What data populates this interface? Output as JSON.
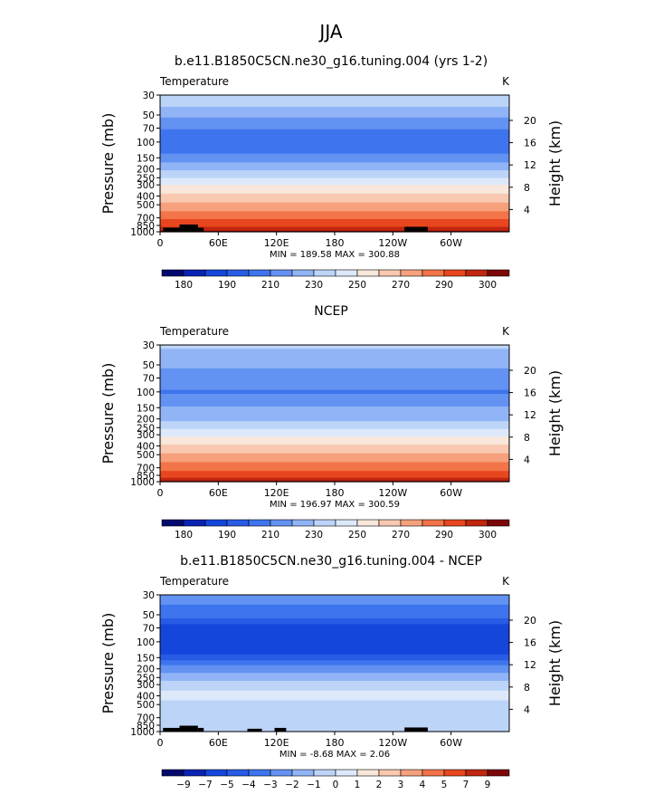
{
  "figure": {
    "title": "JJA"
  },
  "chart_data": [
    {
      "type": "heatmap",
      "title": "b.e11.B1850C5CN.ne30_g16.tuning.004 (yrs 1-2)",
      "subtitle": "Temperature",
      "units": "K",
      "ylabel": "Pressure (mb)",
      "ylabel_right": "Height (km)",
      "x_ticks": [
        "0",
        "60E",
        "120E",
        "180",
        "120W",
        "60W"
      ],
      "x_tick_values": [
        0,
        60,
        120,
        180,
        240,
        300
      ],
      "xlim": [
        0,
        360
      ],
      "y_ticks": [
        30,
        50,
        70,
        100,
        150,
        200,
        250,
        300,
        400,
        500,
        700,
        850,
        1000
      ],
      "ylim": [
        30,
        1000
      ],
      "y_scale": "log",
      "height_ticks": [
        20,
        16,
        12,
        8,
        4
      ],
      "min_max_text": "MIN = 189.58   MAX = 300.88",
      "profile": [
        {
          "p": 30,
          "v": 225
        },
        {
          "p": 45,
          "v": 218
        },
        {
          "p": 60,
          "v": 205
        },
        {
          "p": 80,
          "v": 197
        },
        {
          "p": 100,
          "v": 191
        },
        {
          "p": 130,
          "v": 198
        },
        {
          "p": 150,
          "v": 205
        },
        {
          "p": 175,
          "v": 212
        },
        {
          "p": 200,
          "v": 218
        },
        {
          "p": 250,
          "v": 230
        },
        {
          "p": 300,
          "v": 240
        },
        {
          "p": 400,
          "v": 253
        },
        {
          "p": 500,
          "v": 263
        },
        {
          "p": 700,
          "v": 278
        },
        {
          "p": 850,
          "v": 287
        },
        {
          "p": 1000,
          "v": 297
        }
      ],
      "colorbar": {
        "labels": [
          "180",
          "190",
          "210",
          "230",
          "250",
          "270",
          "290",
          "300"
        ],
        "label_slots": [
          1,
          3,
          5,
          7,
          9,
          11,
          13,
          15
        ],
        "levels": [
          175,
          180,
          185,
          190,
          200,
          210,
          220,
          230,
          240,
          250,
          260,
          270,
          280,
          290,
          295,
          300
        ]
      },
      "topography": [
        [
          3,
          20,
          900
        ],
        [
          20,
          39,
          830
        ],
        [
          39,
          45,
          900
        ],
        [
          252,
          276,
          880
        ]
      ]
    },
    {
      "type": "heatmap",
      "title": "NCEP",
      "subtitle": "Temperature",
      "units": "K",
      "ylabel": "Pressure (mb)",
      "ylabel_right": "Height (km)",
      "x_ticks": [
        "0",
        "60E",
        "120E",
        "180",
        "120W",
        "60W"
      ],
      "x_tick_values": [
        0,
        60,
        120,
        180,
        240,
        300
      ],
      "xlim": [
        0,
        360
      ],
      "y_ticks": [
        30,
        50,
        70,
        100,
        150,
        200,
        250,
        300,
        400,
        500,
        700,
        850,
        1000
      ],
      "ylim": [
        30,
        1000
      ],
      "y_scale": "log",
      "height_ticks": [
        20,
        16,
        12,
        8,
        4
      ],
      "min_max_text": "MIN = 196.97   MAX = 300.59",
      "profile": [
        {
          "p": 30,
          "v": 222
        },
        {
          "p": 50,
          "v": 212
        },
        {
          "p": 70,
          "v": 205
        },
        {
          "p": 100,
          "v": 199
        },
        {
          "p": 130,
          "v": 205
        },
        {
          "p": 150,
          "v": 211
        },
        {
          "p": 200,
          "v": 218
        },
        {
          "p": 250,
          "v": 228
        },
        {
          "p": 300,
          "v": 238
        },
        {
          "p": 400,
          "v": 252
        },
        {
          "p": 500,
          "v": 262
        },
        {
          "p": 700,
          "v": 276
        },
        {
          "p": 850,
          "v": 286
        },
        {
          "p": 1000,
          "v": 296
        }
      ],
      "colorbar": {
        "labels": [
          "180",
          "190",
          "210",
          "230",
          "250",
          "270",
          "290",
          "300"
        ],
        "label_slots": [
          1,
          3,
          5,
          7,
          9,
          11,
          13,
          15
        ],
        "levels": [
          175,
          180,
          185,
          190,
          200,
          210,
          220,
          230,
          240,
          250,
          260,
          270,
          280,
          290,
          295,
          300
        ]
      },
      "topography": []
    },
    {
      "type": "heatmap",
      "title": "b.e11.B1850C5CN.ne30_g16.tuning.004 - NCEP",
      "subtitle": "Temperature",
      "units": "K",
      "ylabel": "Pressure (mb)",
      "ylabel_right": "Height (km)",
      "x_ticks": [
        "0",
        "60E",
        "120E",
        "180",
        "120W",
        "60W"
      ],
      "x_tick_values": [
        0,
        60,
        120,
        180,
        240,
        300
      ],
      "xlim": [
        0,
        360
      ],
      "y_ticks": [
        30,
        50,
        70,
        100,
        150,
        200,
        250,
        300,
        400,
        500,
        700,
        850,
        1000
      ],
      "ylim": [
        30,
        1000
      ],
      "y_scale": "log",
      "height_ticks": [
        20,
        16,
        12,
        8,
        4
      ],
      "min_max_text": "MIN =   -8.68   MAX =    2.06",
      "profile": [
        {
          "p": 30,
          "v": -2.5
        },
        {
          "p": 50,
          "v": -3.5
        },
        {
          "p": 70,
          "v": -5.5
        },
        {
          "p": 100,
          "v": -6.5
        },
        {
          "p": 130,
          "v": -5.5
        },
        {
          "p": 170,
          "v": -3.5
        },
        {
          "p": 200,
          "v": -2.5
        },
        {
          "p": 250,
          "v": -1.5
        },
        {
          "p": 300,
          "v": -0.5
        },
        {
          "p": 400,
          "v": 0.5
        },
        {
          "p": 500,
          "v": -0.5
        },
        {
          "p": 700,
          "v": -0.5
        },
        {
          "p": 850,
          "v": -0.5
        },
        {
          "p": 1000,
          "v": -0.5
        }
      ],
      "colorbar": {
        "labels": [
          "-9",
          "-7",
          "-5",
          "-4",
          "-3",
          "-2",
          "-1",
          "0",
          "1",
          "2",
          "3",
          "4",
          "5",
          "7",
          "9"
        ],
        "label_slots": [
          1,
          2,
          3,
          4,
          5,
          6,
          7,
          8,
          9,
          10,
          11,
          12,
          13,
          14,
          15
        ],
        "levels": [
          -9,
          -7,
          -5,
          -4,
          -3,
          -2,
          -1,
          0,
          1,
          2,
          3,
          4,
          5,
          7,
          9
        ]
      },
      "topography": [
        [
          3,
          20,
          910
        ],
        [
          20,
          39,
          860
        ],
        [
          39,
          45,
          910
        ],
        [
          90,
          105,
          930
        ],
        [
          118,
          130,
          910
        ],
        [
          252,
          276,
          900
        ]
      ]
    }
  ],
  "colors": {
    "palette": [
      "#020a70",
      "#0a23b4",
      "#1446dc",
      "#285ce6",
      "#3e74ee",
      "#6392f2",
      "#90b4f6",
      "#bcd4f8",
      "#dde9fa",
      "#f8e7da",
      "#f8c9b0",
      "#f6a07c",
      "#f27448",
      "#e8461e",
      "#c02610",
      "#7d0606"
    ],
    "topography": "#000000"
  }
}
